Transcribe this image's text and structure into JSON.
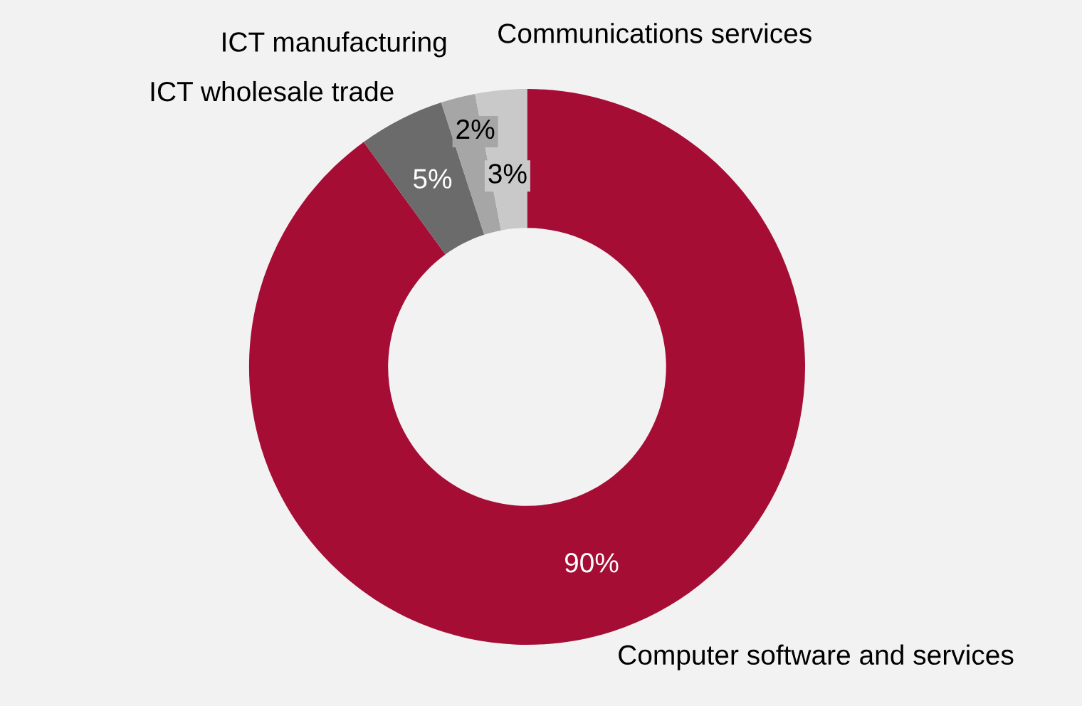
{
  "chart_data": {
    "type": "donut",
    "categories": [
      "Computer software and services",
      "ICT wholesale trade",
      "ICT manufacturing",
      "Communications services"
    ],
    "values": [
      90,
      5,
      2,
      3
    ],
    "value_labels": [
      "90%",
      "5%",
      "2%",
      "3%"
    ],
    "colors": [
      "#a50d35",
      "#6b6b6b",
      "#a6a6a6",
      "#c9c9c9"
    ],
    "legend": false
  }
}
